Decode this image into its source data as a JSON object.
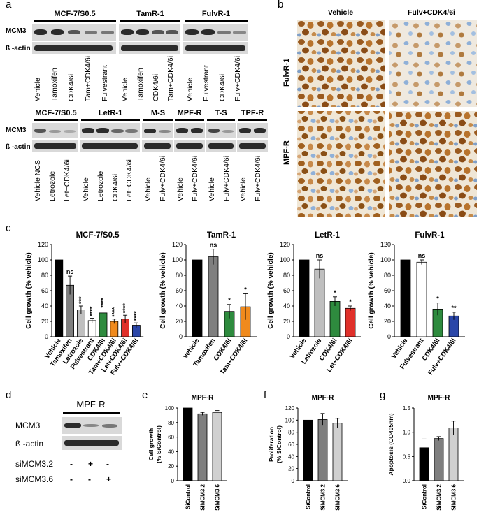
{
  "panels": {
    "a": "a",
    "b": "b",
    "c": "c",
    "d": "d",
    "e": "e",
    "f": "f",
    "g": "g"
  },
  "panel_a": {
    "top": {
      "groups": [
        "MCF-7/S0.5",
        "TamR-1",
        "FulvR-1"
      ],
      "rows": [
        "MCM3",
        "ß -actin"
      ],
      "lanes": [
        "Vehicle",
        "Tamoxifen",
        "CDK4/6i",
        "Tam+CDK4/6i",
        "Fulvestrant",
        "Vehicle",
        "Tamoxifen",
        "CDK4/6i",
        "Tam+CDK4/6i",
        "Vehicle",
        "Fulvestrant",
        "CDK4/6i",
        "Fulv+CDK4/6i"
      ]
    },
    "bottom": {
      "groups": [
        "MCF-7/S0.5",
        "LetR-1",
        "M-S",
        "MPF-R",
        "T-S",
        "TPF-R"
      ],
      "rows": [
        "MCM3",
        "ß -actin"
      ],
      "lanes": [
        "Vehicle NCS",
        "Letrozole",
        "Let+CDK4/6i",
        "Vehicle",
        "Letrozole",
        "CDK4/6i",
        "Let+CDK4/6i",
        "Vehicle",
        "Fulv+CDK4/6i",
        "Vehicle",
        "Fulv+CDK4/6i",
        "Vehicle",
        "Fulv+CDK4/6i",
        "Vehicle",
        "Fulv+CDK4/6i"
      ]
    }
  },
  "panel_b": {
    "cols": [
      "Vehicle",
      "Fulv+CDK4/6i"
    ],
    "rows": [
      "FulvR-1",
      "MPF-R"
    ]
  },
  "panel_d": {
    "title": "MPF-R",
    "rows": [
      "MCM3",
      "ß -actin"
    ],
    "sirows": [
      {
        "label": "siMCM3.2",
        "marks": [
          "-",
          "+",
          "-"
        ]
      },
      {
        "label": "siMCM3.6",
        "marks": [
          "-",
          "-",
          "+"
        ]
      }
    ]
  },
  "chart_data": [
    {
      "type": "bar",
      "title": "MCF-7/S0.5",
      "ylabel": "Cell growth (% vehicle)",
      "ylim": [
        0,
        120
      ],
      "yticks": [
        0,
        20,
        40,
        60,
        80,
        100,
        120
      ],
      "categories": [
        "Vehicle",
        "Tamoxifen",
        "Letrozole",
        "Fulvestrant",
        "CDK4/6i",
        "Tam+CDK4/6i",
        "Let+CDK4/6i",
        "Fulv+CDK4/6i"
      ],
      "values": [
        100,
        67,
        35,
        21,
        31,
        20,
        23,
        15
      ],
      "errors": [
        0,
        12,
        5,
        3,
        4,
        3,
        5,
        3
      ],
      "sig": [
        "",
        "ns",
        "***",
        "****",
        "****",
        "****",
        "****",
        "****"
      ],
      "colors": [
        "#000000",
        "#7f7f7f",
        "#bfbfbf",
        "#ffffff",
        "#2e8b3e",
        "#f08a1d",
        "#e0302a",
        "#2a46a8"
      ]
    },
    {
      "type": "bar",
      "title": "TamR-1",
      "ylabel": "Cell growth (% vehicle)",
      "ylim": [
        0,
        120
      ],
      "yticks": [
        0,
        20,
        40,
        60,
        80,
        100,
        120
      ],
      "categories": [
        "Vehicle",
        "Tamoxifen",
        "CDK4/6i",
        "Tam+CDK4/6i"
      ],
      "values": [
        100,
        104,
        33,
        39
      ],
      "errors": [
        0,
        10,
        9,
        17
      ],
      "sig": [
        "",
        "ns",
        "*",
        "*"
      ],
      "colors": [
        "#000000",
        "#7f7f7f",
        "#2e8b3e",
        "#f08a1d"
      ]
    },
    {
      "type": "bar",
      "title": "LetR-1",
      "ylabel": "Cell growth (% vehicle)",
      "ylim": [
        0,
        120
      ],
      "yticks": [
        0,
        20,
        40,
        60,
        80,
        100,
        120
      ],
      "categories": [
        "Vehicle",
        "Letrozole",
        "CDK4/6i",
        "Let+CDK4/6i"
      ],
      "values": [
        100,
        88,
        46,
        37
      ],
      "errors": [
        0,
        12,
        6,
        3
      ],
      "sig": [
        "",
        "ns",
        "*",
        "*"
      ],
      "colors": [
        "#000000",
        "#bfbfbf",
        "#2e8b3e",
        "#e0302a"
      ]
    },
    {
      "type": "bar",
      "title": "FulvR-1",
      "ylabel": "Cell growth (% vehicle)",
      "ylim": [
        0,
        120
      ],
      "yticks": [
        0,
        20,
        40,
        60,
        80,
        100,
        120
      ],
      "categories": [
        "Vehicle",
        "Fulvestrant",
        "CDK4/6i",
        "Fulv+CDK4/6i"
      ],
      "values": [
        100,
        97,
        36,
        27
      ],
      "errors": [
        0,
        3,
        8,
        5
      ],
      "sig": [
        "",
        "ns",
        "*",
        "**"
      ],
      "colors": [
        "#000000",
        "#ffffff",
        "#2e8b3e",
        "#2a46a8"
      ]
    },
    {
      "type": "bar",
      "title": "MPF-R",
      "ylabel": "Cell growth (% SiControl)",
      "ylim": [
        0,
        100
      ],
      "yticks": [
        0,
        20,
        40,
        60,
        80,
        100
      ],
      "categories": [
        "SiControl",
        "SiMCM3.2",
        "SiMCM3.6"
      ],
      "values": [
        100,
        92,
        94
      ],
      "errors": [
        0,
        2,
        2.5
      ],
      "sig": [
        "",
        "",
        ""
      ],
      "colors": [
        "#000000",
        "#7f7f7f",
        "#d0d0d0"
      ]
    },
    {
      "type": "bar",
      "title": "MPF-R",
      "ylabel": "Proliferation (% SiControl)",
      "ylim": [
        0,
        120
      ],
      "yticks": [
        0,
        20,
        40,
        60,
        80,
        100,
        120
      ],
      "categories": [
        "SiControl",
        "SiMCM3.2",
        "SiMCM3.6"
      ],
      "values": [
        100,
        101,
        95
      ],
      "errors": [
        0,
        10,
        8
      ],
      "sig": [
        "",
        "",
        ""
      ],
      "colors": [
        "#000000",
        "#7f7f7f",
        "#d0d0d0"
      ]
    },
    {
      "type": "bar",
      "title": "MPF-R",
      "ylabel": "Apoptosis (OD405nm)",
      "ylim": [
        0,
        1.5
      ],
      "yticks": [
        0.0,
        0.5,
        1.0,
        1.5
      ],
      "ytickLabels": [
        "0.0",
        "0.5",
        "1.0",
        "1.5"
      ],
      "categories": [
        "SiControl",
        "SiMCM3.2",
        "SiMCM3.6"
      ],
      "values": [
        0.68,
        0.87,
        1.09
      ],
      "errors": [
        0.18,
        0.04,
        0.14
      ],
      "sig": [
        "",
        "",
        ""
      ],
      "colors": [
        "#000000",
        "#7f7f7f",
        "#d0d0d0"
      ]
    }
  ]
}
